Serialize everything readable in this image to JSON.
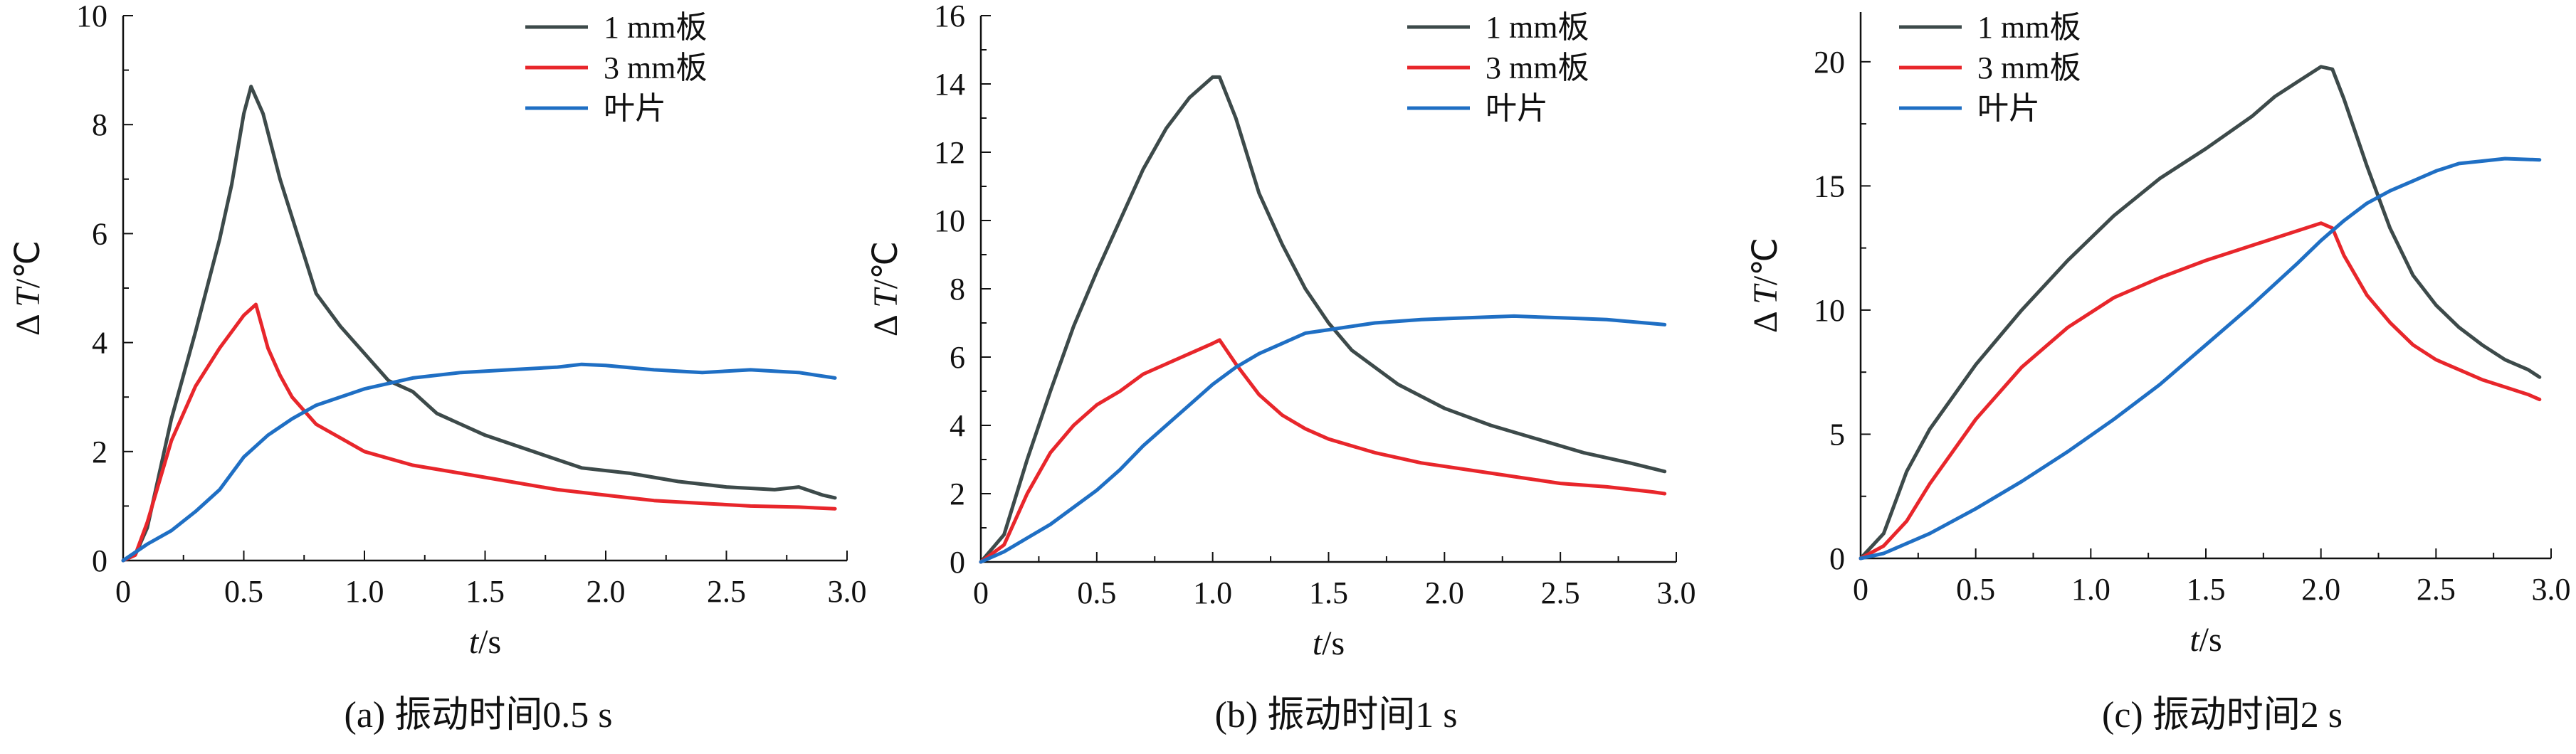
{
  "figure": {
    "colors": {
      "dark": "#3d4a4a",
      "red": "#e8262b",
      "blue": "#1f6fc4"
    }
  },
  "chart_data": [
    {
      "type": "line",
      "caption": "(a)  振动时间0.5 s",
      "xlabel_italic": "t",
      "xlabel_unit": "/s",
      "ylabel_prefix": "Δ ",
      "ylabel_italic": "T",
      "ylabel_unit": "/℃",
      "xlim": [
        0,
        3.0
      ],
      "ylim": [
        0,
        10
      ],
      "xticks": [
        "0",
        "0.5",
        "1.0",
        "1.5",
        "2.0",
        "2.5",
        "3.0"
      ],
      "xtick_values": [
        0,
        0.5,
        1.0,
        1.5,
        2.0,
        2.5,
        3.0
      ],
      "yticks": [
        "0",
        "2",
        "4",
        "6",
        "8",
        "10"
      ],
      "ytick_values": [
        0,
        2,
        4,
        6,
        8,
        10
      ],
      "legend_position": "top-right",
      "series": [
        {
          "name": "1 mm板",
          "color": "#3d4a4a",
          "x": [
            0,
            0.05,
            0.1,
            0.2,
            0.3,
            0.4,
            0.45,
            0.5,
            0.53,
            0.58,
            0.65,
            0.7,
            0.8,
            0.9,
            1.0,
            1.1,
            1.2,
            1.3,
            1.5,
            1.7,
            1.9,
            2.1,
            2.3,
            2.5,
            2.7,
            2.8,
            2.9,
            2.95
          ],
          "y": [
            0,
            0.1,
            0.6,
            2.6,
            4.2,
            5.9,
            6.9,
            8.2,
            8.7,
            8.2,
            7.0,
            6.3,
            4.9,
            4.3,
            3.8,
            3.3,
            3.1,
            2.7,
            2.3,
            2.0,
            1.7,
            1.6,
            1.45,
            1.35,
            1.3,
            1.35,
            1.2,
            1.15
          ]
        },
        {
          "name": "3 mm板",
          "color": "#e8262b",
          "x": [
            0,
            0.05,
            0.1,
            0.2,
            0.3,
            0.4,
            0.5,
            0.55,
            0.6,
            0.65,
            0.7,
            0.8,
            0.9,
            1.0,
            1.2,
            1.4,
            1.6,
            1.8,
            2.0,
            2.2,
            2.4,
            2.6,
            2.8,
            2.95
          ],
          "y": [
            0,
            0.1,
            0.7,
            2.2,
            3.2,
            3.9,
            4.5,
            4.7,
            3.9,
            3.4,
            3.0,
            2.5,
            2.25,
            2.0,
            1.75,
            1.6,
            1.45,
            1.3,
            1.2,
            1.1,
            1.05,
            1.0,
            0.98,
            0.95
          ]
        },
        {
          "name": "叶片",
          "color": "#1f6fc4",
          "x": [
            0,
            0.1,
            0.2,
            0.3,
            0.4,
            0.5,
            0.6,
            0.7,
            0.8,
            0.9,
            1.0,
            1.2,
            1.4,
            1.6,
            1.8,
            1.9,
            2.0,
            2.2,
            2.4,
            2.6,
            2.8,
            2.95
          ],
          "y": [
            0,
            0.3,
            0.55,
            0.9,
            1.3,
            1.9,
            2.3,
            2.6,
            2.85,
            3.0,
            3.15,
            3.35,
            3.45,
            3.5,
            3.55,
            3.6,
            3.58,
            3.5,
            3.45,
            3.5,
            3.45,
            3.35
          ]
        }
      ]
    },
    {
      "type": "line",
      "caption": "(b)  振动时间1 s",
      "xlabel_italic": "t",
      "xlabel_unit": "/s",
      "ylabel_prefix": "Δ ",
      "ylabel_italic": "T",
      "ylabel_unit": "/℃",
      "xlim": [
        0,
        3.0
      ],
      "ylim": [
        0,
        16
      ],
      "xticks": [
        "0",
        "0.5",
        "1.0",
        "1.5",
        "2.0",
        "2.5",
        "3.0"
      ],
      "xtick_values": [
        0,
        0.5,
        1.0,
        1.5,
        2.0,
        2.5,
        3.0
      ],
      "yticks": [
        "0",
        "2",
        "4",
        "6",
        "8",
        "10",
        "12",
        "14",
        "16"
      ],
      "ytick_values": [
        0,
        2,
        4,
        6,
        8,
        10,
        12,
        14,
        16
      ],
      "legend_position": "top-right",
      "series": [
        {
          "name": "1 mm板",
          "color": "#3d4a4a",
          "x": [
            0,
            0.1,
            0.2,
            0.3,
            0.4,
            0.5,
            0.6,
            0.7,
            0.8,
            0.9,
            1.0,
            1.03,
            1.1,
            1.2,
            1.3,
            1.4,
            1.5,
            1.6,
            1.8,
            2.0,
            2.2,
            2.4,
            2.6,
            2.8,
            2.95
          ],
          "y": [
            0,
            0.8,
            3.0,
            5.0,
            6.9,
            8.5,
            10.0,
            11.5,
            12.7,
            13.6,
            14.2,
            14.2,
            13.0,
            10.8,
            9.3,
            8.0,
            7.0,
            6.2,
            5.2,
            4.5,
            4.0,
            3.6,
            3.2,
            2.9,
            2.65
          ]
        },
        {
          "name": "3 mm板",
          "color": "#e8262b",
          "x": [
            0,
            0.1,
            0.2,
            0.3,
            0.4,
            0.5,
            0.6,
            0.7,
            0.8,
            0.9,
            1.0,
            1.03,
            1.1,
            1.2,
            1.3,
            1.4,
            1.5,
            1.7,
            1.9,
            2.1,
            2.3,
            2.5,
            2.7,
            2.9,
            2.95
          ],
          "y": [
            0,
            0.5,
            2.0,
            3.2,
            4.0,
            4.6,
            5.0,
            5.5,
            5.8,
            6.1,
            6.4,
            6.5,
            5.8,
            4.9,
            4.3,
            3.9,
            3.6,
            3.2,
            2.9,
            2.7,
            2.5,
            2.3,
            2.2,
            2.05,
            2.0
          ]
        },
        {
          "name": "叶片",
          "color": "#1f6fc4",
          "x": [
            0,
            0.1,
            0.2,
            0.3,
            0.4,
            0.5,
            0.6,
            0.7,
            0.8,
            0.9,
            1.0,
            1.1,
            1.2,
            1.3,
            1.4,
            1.5,
            1.7,
            1.9,
            2.1,
            2.3,
            2.5,
            2.7,
            2.95
          ],
          "y": [
            0,
            0.3,
            0.7,
            1.1,
            1.6,
            2.1,
            2.7,
            3.4,
            4.0,
            4.6,
            5.2,
            5.7,
            6.1,
            6.4,
            6.7,
            6.8,
            7.0,
            7.1,
            7.15,
            7.2,
            7.15,
            7.1,
            6.95
          ]
        }
      ]
    },
    {
      "type": "line",
      "caption": "(c)  振动时间2 s",
      "xlabel_italic": "t",
      "xlabel_unit": "/s",
      "ylabel_prefix": "Δ ",
      "ylabel_italic": "T",
      "ylabel_unit": "/℃",
      "xlim": [
        0,
        3.0
      ],
      "ylim": [
        0,
        22
      ],
      "xticks": [
        "0",
        "0.5",
        "1.0",
        "1.5",
        "2.0",
        "2.5",
        "3.0"
      ],
      "xtick_values": [
        0,
        0.5,
        1.0,
        1.5,
        2.0,
        2.5,
        3.0
      ],
      "yticks": [
        "0",
        "5",
        "10",
        "15",
        "20"
      ],
      "ytick_values": [
        0,
        5,
        10,
        15,
        20
      ],
      "legend_position": "top-left",
      "series": [
        {
          "name": "1 mm板",
          "color": "#3d4a4a",
          "x": [
            0,
            0.1,
            0.2,
            0.3,
            0.5,
            0.7,
            0.9,
            1.1,
            1.3,
            1.5,
            1.7,
            1.8,
            1.9,
            2.0,
            2.05,
            2.1,
            2.2,
            2.3,
            2.4,
            2.5,
            2.6,
            2.7,
            2.8,
            2.9,
            2.95
          ],
          "y": [
            0,
            1.0,
            3.5,
            5.2,
            7.8,
            10.0,
            12.0,
            13.8,
            15.3,
            16.5,
            17.8,
            18.6,
            19.2,
            19.8,
            19.7,
            18.5,
            15.8,
            13.3,
            11.4,
            10.2,
            9.3,
            8.6,
            8.0,
            7.6,
            7.3
          ]
        },
        {
          "name": "3 mm板",
          "color": "#e8262b",
          "x": [
            0,
            0.1,
            0.2,
            0.3,
            0.5,
            0.7,
            0.9,
            1.1,
            1.3,
            1.5,
            1.7,
            1.9,
            2.0,
            2.05,
            2.1,
            2.2,
            2.3,
            2.4,
            2.5,
            2.6,
            2.7,
            2.8,
            2.9,
            2.95
          ],
          "y": [
            0,
            0.5,
            1.5,
            3.0,
            5.6,
            7.7,
            9.3,
            10.5,
            11.3,
            12.0,
            12.6,
            13.2,
            13.5,
            13.3,
            12.2,
            10.6,
            9.5,
            8.6,
            8.0,
            7.6,
            7.2,
            6.9,
            6.6,
            6.4
          ]
        },
        {
          "name": "叶片",
          "color": "#1f6fc4",
          "x": [
            0,
            0.1,
            0.3,
            0.5,
            0.7,
            0.9,
            1.1,
            1.3,
            1.5,
            1.7,
            1.9,
            2.0,
            2.1,
            2.2,
            2.3,
            2.4,
            2.5,
            2.6,
            2.7,
            2.8,
            2.95
          ],
          "y": [
            0,
            0.2,
            1.0,
            2.0,
            3.1,
            4.3,
            5.6,
            7.0,
            8.6,
            10.2,
            11.9,
            12.8,
            13.6,
            14.3,
            14.8,
            15.2,
            15.6,
            15.9,
            16.0,
            16.1,
            16.05
          ]
        }
      ]
    }
  ]
}
